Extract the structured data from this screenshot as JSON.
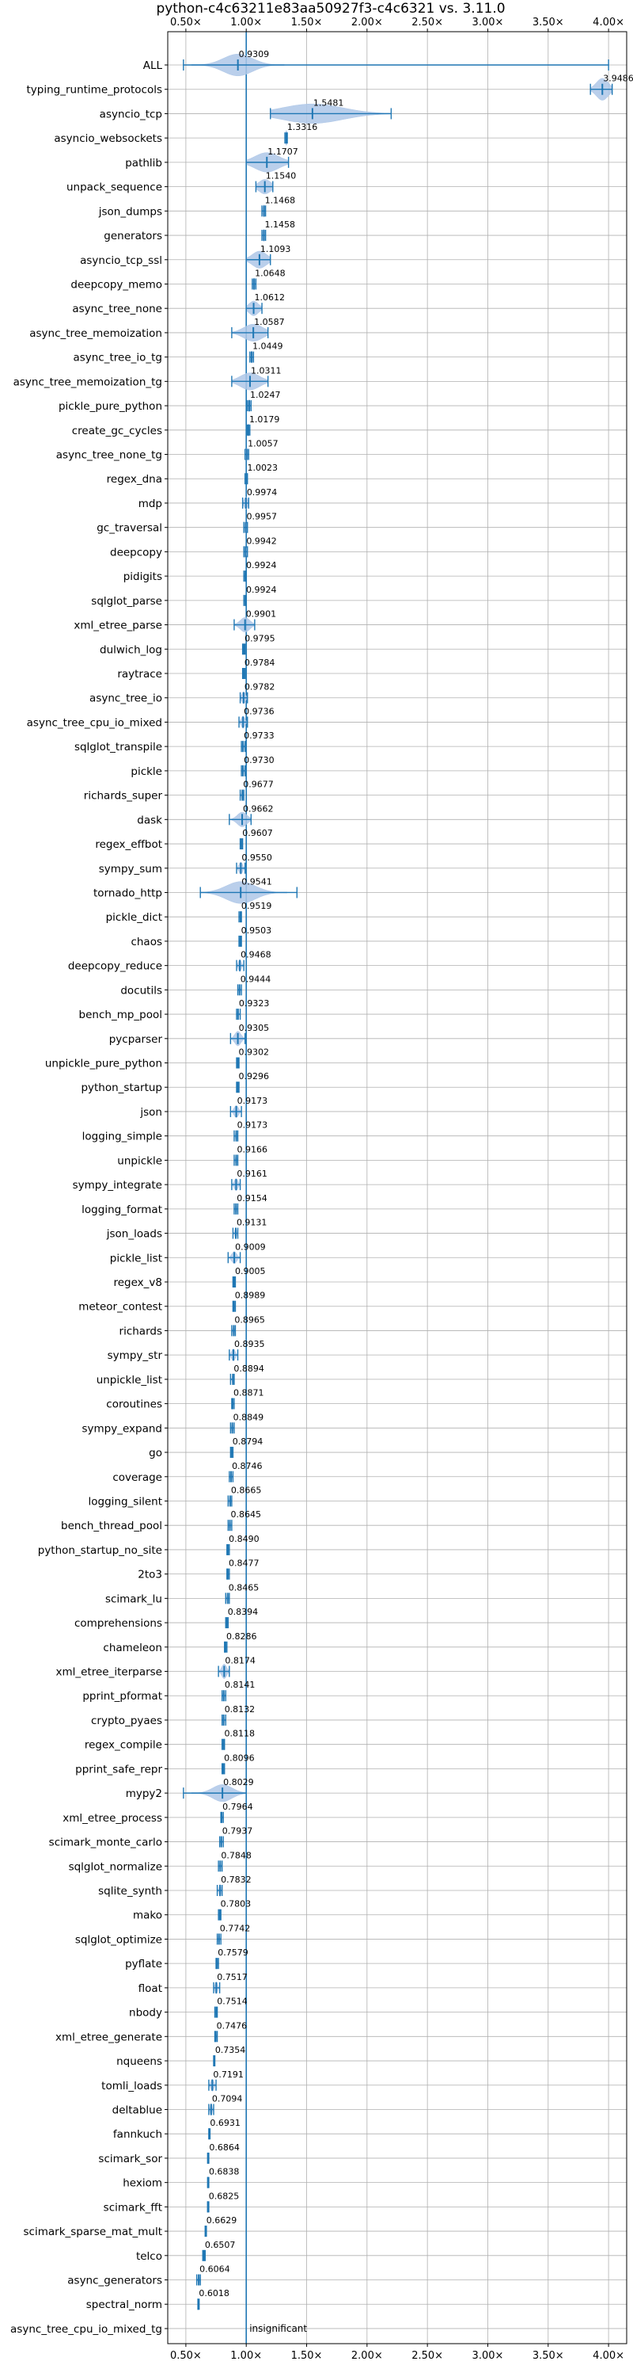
{
  "chart_data": {
    "type": "violin",
    "title": "python-c4c63211e83aa50927f3-c4c6321 vs. 3.11.0",
    "x_ticks": [
      "0.50×",
      "1.00×",
      "1.50×",
      "2.00×",
      "2.50×",
      "3.00×",
      "3.50×",
      "4.00×"
    ],
    "x_tick_values": [
      0.5,
      1.0,
      1.5,
      2.0,
      2.5,
      3.0,
      3.5,
      4.0
    ],
    "xlim": [
      0.35,
      4.15
    ],
    "reference_line": 1.0,
    "grid": true,
    "color": "#1f77b4",
    "fill_color": "#aec7e8",
    "benchmarks": [
      {
        "name": "ALL",
        "value": 0.9309,
        "label": "0.9309",
        "min": 0.48,
        "max": 4.0,
        "spread": 0.12,
        "width": 0.45
      },
      {
        "name": "typing_runtime_protocols",
        "value": 3.9486,
        "label": "3.9486",
        "min": 3.85,
        "max": 4.03,
        "spread": 0.05,
        "width": 0.45
      },
      {
        "name": "asyncio_tcp",
        "value": 1.5481,
        "label": "1.5481",
        "min": 1.2,
        "max": 2.2,
        "spread": 0.25,
        "width": 0.4
      },
      {
        "name": "asyncio_websockets",
        "value": 1.3316,
        "label": "1.3316",
        "min": 1.32,
        "max": 1.34,
        "spread": 0.01,
        "width": 0.3
      },
      {
        "name": "pathlib",
        "value": 1.1707,
        "label": "1.1707",
        "min": 1.0,
        "max": 1.35,
        "spread": 0.1,
        "width": 0.4
      },
      {
        "name": "unpack_sequence",
        "value": 1.154,
        "label": "1.1540",
        "min": 1.08,
        "max": 1.22,
        "spread": 0.05,
        "width": 0.3
      },
      {
        "name": "json_dumps",
        "value": 1.1468,
        "label": "1.1468",
        "min": 1.13,
        "max": 1.16,
        "spread": 0.01,
        "width": 0.25
      },
      {
        "name": "generators",
        "value": 1.1458,
        "label": "1.1458",
        "min": 1.13,
        "max": 1.16,
        "spread": 0.01,
        "width": 0.25
      },
      {
        "name": "asyncio_tcp_ssl",
        "value": 1.1093,
        "label": "1.1093",
        "min": 1.0,
        "max": 1.2,
        "spread": 0.06,
        "width": 0.35
      },
      {
        "name": "deepcopy_memo",
        "value": 1.0648,
        "label": "1.0648",
        "min": 1.05,
        "max": 1.08,
        "spread": 0.01,
        "width": 0.25
      },
      {
        "name": "async_tree_none",
        "value": 1.0612,
        "label": "1.0612",
        "min": 1.0,
        "max": 1.13,
        "spread": 0.04,
        "width": 0.3
      },
      {
        "name": "async_tree_memoization",
        "value": 1.0587,
        "label": "1.0587",
        "min": 0.88,
        "max": 1.18,
        "spread": 0.08,
        "width": 0.35
      },
      {
        "name": "async_tree_io_tg",
        "value": 1.0449,
        "label": "1.0449",
        "min": 1.03,
        "max": 1.06,
        "spread": 0.01,
        "width": 0.25
      },
      {
        "name": "async_tree_memoization_tg",
        "value": 1.0311,
        "label": "1.0311",
        "min": 0.88,
        "max": 1.18,
        "spread": 0.08,
        "width": 0.35
      },
      {
        "name": "pickle_pure_python",
        "value": 1.0247,
        "label": "1.0247",
        "min": 1.01,
        "max": 1.04,
        "spread": 0.01,
        "width": 0.25
      },
      {
        "name": "create_gc_cycles",
        "value": 1.0179,
        "label": "1.0179",
        "min": 1.01,
        "max": 1.03,
        "spread": 0.01,
        "width": 0.25
      },
      {
        "name": "async_tree_none_tg",
        "value": 1.0057,
        "label": "1.0057",
        "min": 0.99,
        "max": 1.02,
        "spread": 0.01,
        "width": 0.25
      },
      {
        "name": "regex_dna",
        "value": 1.0023,
        "label": "1.0023",
        "min": 0.99,
        "max": 1.01,
        "spread": 0.005,
        "width": 0.2
      },
      {
        "name": "mdp",
        "value": 0.9974,
        "label": "0.9974",
        "min": 0.97,
        "max": 1.02,
        "spread": 0.015,
        "width": 0.25
      },
      {
        "name": "gc_traversal",
        "value": 0.9957,
        "label": "0.9957",
        "min": 0.98,
        "max": 1.01,
        "spread": 0.008,
        "width": 0.25
      },
      {
        "name": "deepcopy",
        "value": 0.9942,
        "label": "0.9942",
        "min": 0.98,
        "max": 1.01,
        "spread": 0.008,
        "width": 0.25
      },
      {
        "name": "pidigits",
        "value": 0.9924,
        "label": "0.9924",
        "min": 0.98,
        "max": 1.0,
        "spread": 0.005,
        "width": 0.2
      },
      {
        "name": "sqlglot_parse",
        "value": 0.9924,
        "label": "0.9924",
        "min": 0.98,
        "max": 1.0,
        "spread": 0.005,
        "width": 0.2
      },
      {
        "name": "xml_etree_parse",
        "value": 0.9901,
        "label": "0.9901",
        "min": 0.9,
        "max": 1.07,
        "spread": 0.04,
        "width": 0.3
      },
      {
        "name": "dulwich_log",
        "value": 0.9795,
        "label": "0.9795",
        "min": 0.97,
        "max": 0.99,
        "spread": 0.005,
        "width": 0.2
      },
      {
        "name": "raytrace",
        "value": 0.9784,
        "label": "0.9784",
        "min": 0.97,
        "max": 0.99,
        "spread": 0.005,
        "width": 0.2
      },
      {
        "name": "async_tree_io",
        "value": 0.9782,
        "label": "0.9782",
        "min": 0.95,
        "max": 1.01,
        "spread": 0.015,
        "width": 0.25
      },
      {
        "name": "async_tree_cpu_io_mixed",
        "value": 0.9736,
        "label": "0.9736",
        "min": 0.94,
        "max": 1.01,
        "spread": 0.015,
        "width": 0.25
      },
      {
        "name": "sqlglot_transpile",
        "value": 0.9733,
        "label": "0.9733",
        "min": 0.96,
        "max": 0.99,
        "spread": 0.006,
        "width": 0.2
      },
      {
        "name": "pickle",
        "value": 0.973,
        "label": "0.9730",
        "min": 0.96,
        "max": 0.99,
        "spread": 0.006,
        "width": 0.2
      },
      {
        "name": "richards_super",
        "value": 0.9677,
        "label": "0.9677",
        "min": 0.95,
        "max": 0.98,
        "spread": 0.006,
        "width": 0.2
      },
      {
        "name": "dask",
        "value": 0.9662,
        "label": "0.9662",
        "min": 0.86,
        "max": 1.04,
        "spread": 0.04,
        "width": 0.3
      },
      {
        "name": "regex_effbot",
        "value": 0.9607,
        "label": "0.9607",
        "min": 0.95,
        "max": 0.97,
        "spread": 0.004,
        "width": 0.2
      },
      {
        "name": "sympy_sum",
        "value": 0.955,
        "label": "0.9550",
        "min": 0.92,
        "max": 0.99,
        "spread": 0.015,
        "width": 0.25
      },
      {
        "name": "tornado_http",
        "value": 0.9541,
        "label": "0.9541",
        "min": 0.62,
        "max": 1.42,
        "spread": 0.12,
        "width": 0.45
      },
      {
        "name": "pickle_dict",
        "value": 0.9519,
        "label": "0.9519",
        "min": 0.94,
        "max": 0.96,
        "spread": 0.004,
        "width": 0.2
      },
      {
        "name": "chaos",
        "value": 0.9503,
        "label": "0.9503",
        "min": 0.94,
        "max": 0.96,
        "spread": 0.004,
        "width": 0.2
      },
      {
        "name": "deepcopy_reduce",
        "value": 0.9468,
        "label": "0.9468",
        "min": 0.92,
        "max": 0.98,
        "spread": 0.012,
        "width": 0.25
      },
      {
        "name": "docutils",
        "value": 0.9444,
        "label": "0.9444",
        "min": 0.93,
        "max": 0.96,
        "spread": 0.005,
        "width": 0.2
      },
      {
        "name": "bench_mp_pool",
        "value": 0.9323,
        "label": "0.9323",
        "min": 0.92,
        "max": 0.95,
        "spread": 0.005,
        "width": 0.2
      },
      {
        "name": "pycparser",
        "value": 0.9305,
        "label": "0.9305",
        "min": 0.87,
        "max": 0.99,
        "spread": 0.025,
        "width": 0.3
      },
      {
        "name": "unpickle_pure_python",
        "value": 0.9302,
        "label": "0.9302",
        "min": 0.92,
        "max": 0.94,
        "spread": 0.004,
        "width": 0.2
      },
      {
        "name": "python_startup",
        "value": 0.9296,
        "label": "0.9296",
        "min": 0.92,
        "max": 0.94,
        "spread": 0.004,
        "width": 0.2
      },
      {
        "name": "json",
        "value": 0.9173,
        "label": "0.9173",
        "min": 0.87,
        "max": 0.96,
        "spread": 0.018,
        "width": 0.25
      },
      {
        "name": "logging_simple",
        "value": 0.9173,
        "label": "0.9173",
        "min": 0.9,
        "max": 0.93,
        "spread": 0.006,
        "width": 0.2
      },
      {
        "name": "unpickle",
        "value": 0.9166,
        "label": "0.9166",
        "min": 0.9,
        "max": 0.93,
        "spread": 0.006,
        "width": 0.2
      },
      {
        "name": "sympy_integrate",
        "value": 0.9161,
        "label": "0.9161",
        "min": 0.88,
        "max": 0.95,
        "spread": 0.015,
        "width": 0.25
      },
      {
        "name": "logging_format",
        "value": 0.9154,
        "label": "0.9154",
        "min": 0.9,
        "max": 0.93,
        "spread": 0.006,
        "width": 0.2
      },
      {
        "name": "json_loads",
        "value": 0.9131,
        "label": "0.9131",
        "min": 0.89,
        "max": 0.93,
        "spread": 0.008,
        "width": 0.2
      },
      {
        "name": "pickle_list",
        "value": 0.9009,
        "label": "0.9009",
        "min": 0.85,
        "max": 0.95,
        "spread": 0.02,
        "width": 0.25
      },
      {
        "name": "regex_v8",
        "value": 0.9005,
        "label": "0.9005",
        "min": 0.89,
        "max": 0.91,
        "spread": 0.004,
        "width": 0.2
      },
      {
        "name": "meteor_contest",
        "value": 0.8989,
        "label": "0.8989",
        "min": 0.89,
        "max": 0.91,
        "spread": 0.004,
        "width": 0.2
      },
      {
        "name": "richards",
        "value": 0.8965,
        "label": "0.8965",
        "min": 0.88,
        "max": 0.91,
        "spread": 0.006,
        "width": 0.2
      },
      {
        "name": "sympy_str",
        "value": 0.8935,
        "label": "0.8935",
        "min": 0.86,
        "max": 0.93,
        "spread": 0.015,
        "width": 0.25
      },
      {
        "name": "unpickle_list",
        "value": 0.8894,
        "label": "0.8894",
        "min": 0.87,
        "max": 0.9,
        "spread": 0.006,
        "width": 0.2
      },
      {
        "name": "coroutines",
        "value": 0.8871,
        "label": "0.8871",
        "min": 0.88,
        "max": 0.9,
        "spread": 0.004,
        "width": 0.2
      },
      {
        "name": "sympy_expand",
        "value": 0.8849,
        "label": "0.8849",
        "min": 0.87,
        "max": 0.9,
        "spread": 0.006,
        "width": 0.2
      },
      {
        "name": "go",
        "value": 0.8794,
        "label": "0.8794",
        "min": 0.87,
        "max": 0.89,
        "spread": 0.004,
        "width": 0.2
      },
      {
        "name": "coverage",
        "value": 0.8746,
        "label": "0.8746",
        "min": 0.86,
        "max": 0.89,
        "spread": 0.006,
        "width": 0.2
      },
      {
        "name": "logging_silent",
        "value": 0.8665,
        "label": "0.8665",
        "min": 0.85,
        "max": 0.88,
        "spread": 0.006,
        "width": 0.2
      },
      {
        "name": "bench_thread_pool",
        "value": 0.8645,
        "label": "0.8645",
        "min": 0.85,
        "max": 0.88,
        "spread": 0.006,
        "width": 0.2
      },
      {
        "name": "python_startup_no_site",
        "value": 0.849,
        "label": "0.8490",
        "min": 0.84,
        "max": 0.86,
        "spread": 0.004,
        "width": 0.2
      },
      {
        "name": "2to3",
        "value": 0.8477,
        "label": "0.8477",
        "min": 0.84,
        "max": 0.86,
        "spread": 0.004,
        "width": 0.2
      },
      {
        "name": "scimark_lu",
        "value": 0.8465,
        "label": "0.8465",
        "min": 0.83,
        "max": 0.86,
        "spread": 0.006,
        "width": 0.2
      },
      {
        "name": "comprehensions",
        "value": 0.8394,
        "label": "0.8394",
        "min": 0.83,
        "max": 0.85,
        "spread": 0.004,
        "width": 0.2
      },
      {
        "name": "chameleon",
        "value": 0.8286,
        "label": "0.8286",
        "min": 0.82,
        "max": 0.84,
        "spread": 0.004,
        "width": 0.2
      },
      {
        "name": "xml_etree_iterparse",
        "value": 0.8174,
        "label": "0.8174",
        "min": 0.77,
        "max": 0.86,
        "spread": 0.02,
        "width": 0.3
      },
      {
        "name": "pprint_pformat",
        "value": 0.8141,
        "label": "0.8141",
        "min": 0.8,
        "max": 0.83,
        "spread": 0.005,
        "width": 0.2
      },
      {
        "name": "crypto_pyaes",
        "value": 0.8132,
        "label": "0.8132",
        "min": 0.8,
        "max": 0.83,
        "spread": 0.005,
        "width": 0.2
      },
      {
        "name": "regex_compile",
        "value": 0.8118,
        "label": "0.8118",
        "min": 0.8,
        "max": 0.82,
        "spread": 0.004,
        "width": 0.2
      },
      {
        "name": "pprint_safe_repr",
        "value": 0.8096,
        "label": "0.8096",
        "min": 0.8,
        "max": 0.82,
        "spread": 0.004,
        "width": 0.2
      },
      {
        "name": "mypy2",
        "value": 0.8029,
        "label": "0.8029",
        "min": 0.48,
        "max": 1.0,
        "spread": 0.08,
        "width": 0.35
      },
      {
        "name": "xml_etree_process",
        "value": 0.7964,
        "label": "0.7964",
        "min": 0.79,
        "max": 0.81,
        "spread": 0.004,
        "width": 0.2
      },
      {
        "name": "scimark_monte_carlo",
        "value": 0.7937,
        "label": "0.7937",
        "min": 0.78,
        "max": 0.81,
        "spread": 0.005,
        "width": 0.2
      },
      {
        "name": "sqlglot_normalize",
        "value": 0.7848,
        "label": "0.7848",
        "min": 0.77,
        "max": 0.8,
        "spread": 0.005,
        "width": 0.2
      },
      {
        "name": "sqlite_synth",
        "value": 0.7832,
        "label": "0.7832",
        "min": 0.76,
        "max": 0.8,
        "spread": 0.008,
        "width": 0.25
      },
      {
        "name": "mako",
        "value": 0.7803,
        "label": "0.7803",
        "min": 0.77,
        "max": 0.79,
        "spread": 0.004,
        "width": 0.2
      },
      {
        "name": "sqlglot_optimize",
        "value": 0.7742,
        "label": "0.7742",
        "min": 0.76,
        "max": 0.79,
        "spread": 0.005,
        "width": 0.2
      },
      {
        "name": "pyflate",
        "value": 0.7579,
        "label": "0.7579",
        "min": 0.75,
        "max": 0.77,
        "spread": 0.004,
        "width": 0.2
      },
      {
        "name": "float",
        "value": 0.7517,
        "label": "0.7517",
        "min": 0.73,
        "max": 0.78,
        "spread": 0.01,
        "width": 0.25
      },
      {
        "name": "nbody",
        "value": 0.7514,
        "label": "0.7514",
        "min": 0.74,
        "max": 0.76,
        "spread": 0.004,
        "width": 0.2
      },
      {
        "name": "xml_etree_generate",
        "value": 0.7476,
        "label": "0.7476",
        "min": 0.74,
        "max": 0.76,
        "spread": 0.004,
        "width": 0.2
      },
      {
        "name": "nqueens",
        "value": 0.7354,
        "label": "0.7354",
        "min": 0.73,
        "max": 0.74,
        "spread": 0.003,
        "width": 0.2
      },
      {
        "name": "tomli_loads",
        "value": 0.7191,
        "label": "0.7191",
        "min": 0.69,
        "max": 0.75,
        "spread": 0.012,
        "width": 0.25
      },
      {
        "name": "deltablue",
        "value": 0.7094,
        "label": "0.7094",
        "min": 0.69,
        "max": 0.73,
        "spread": 0.008,
        "width": 0.25
      },
      {
        "name": "fannkuch",
        "value": 0.6931,
        "label": "0.6931",
        "min": 0.69,
        "max": 0.7,
        "spread": 0.003,
        "width": 0.2
      },
      {
        "name": "scimark_sor",
        "value": 0.6864,
        "label": "0.6864",
        "min": 0.68,
        "max": 0.69,
        "spread": 0.003,
        "width": 0.2
      },
      {
        "name": "hexiom",
        "value": 0.6838,
        "label": "0.6838",
        "min": 0.68,
        "max": 0.69,
        "spread": 0.003,
        "width": 0.2
      },
      {
        "name": "scimark_fft",
        "value": 0.6825,
        "label": "0.6825",
        "min": 0.68,
        "max": 0.69,
        "spread": 0.003,
        "width": 0.2
      },
      {
        "name": "scimark_sparse_mat_mult",
        "value": 0.6629,
        "label": "0.6629",
        "min": 0.66,
        "max": 0.67,
        "spread": 0.003,
        "width": 0.2
      },
      {
        "name": "telco",
        "value": 0.6507,
        "label": "0.6507",
        "min": 0.64,
        "max": 0.66,
        "spread": 0.003,
        "width": 0.2
      },
      {
        "name": "async_generators",
        "value": 0.6064,
        "label": "0.6064",
        "min": 0.59,
        "max": 0.62,
        "spread": 0.005,
        "width": 0.2
      },
      {
        "name": "spectral_norm",
        "value": 0.6018,
        "label": "0.6018",
        "min": 0.6,
        "max": 0.61,
        "spread": 0.002,
        "width": 0.15
      },
      {
        "name": "async_tree_cpu_io_mixed_tg",
        "value": null,
        "label": "insignificant",
        "min": null,
        "max": null,
        "spread": null,
        "width": null
      }
    ]
  }
}
